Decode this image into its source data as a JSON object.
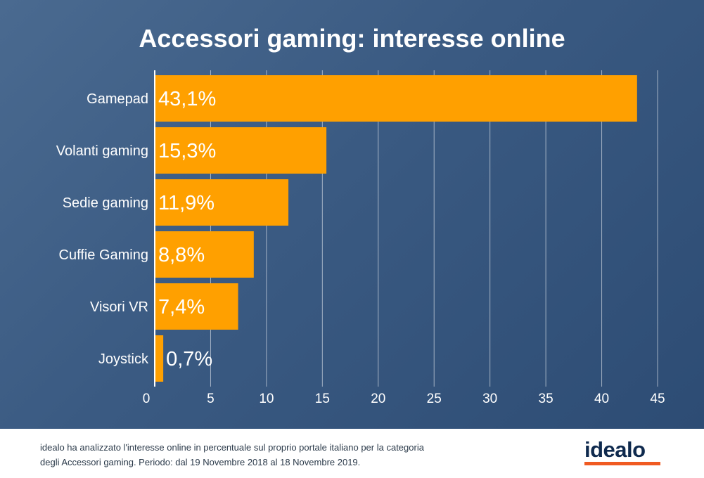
{
  "chart_data": {
    "type": "bar",
    "orientation": "horizontal",
    "title": "Accessori gaming: interesse online",
    "categories": [
      "Gamepad",
      "Volanti gaming",
      "Sedie gaming",
      "Cuffie Gaming",
      "Visori VR",
      "Joystick"
    ],
    "values": [
      43.1,
      15.3,
      11.9,
      8.8,
      7.4,
      0.7
    ],
    "value_labels": [
      "43,1%",
      "15,3%",
      "11,9%",
      "8,8%",
      "7,4%",
      "0,7%"
    ],
    "xlim": [
      0,
      45
    ],
    "x_ticks": [
      "0",
      "5",
      "10",
      "15",
      "20",
      "25",
      "30",
      "35",
      "40",
      "45"
    ],
    "grid": "vertical",
    "bar_color": "#ffa000"
  },
  "footer": {
    "note": "idealo ha analizzato l'interesse online in percentuale sul proprio portale italiano per la categoria degli Accessori gaming. Periodo: dal 19 Novembre 2018 al 18 Novembre 2019.",
    "logo": "idealo"
  },
  "colors": {
    "logo_text": "#0f2a4e",
    "logo_accent": "#f05a22"
  }
}
